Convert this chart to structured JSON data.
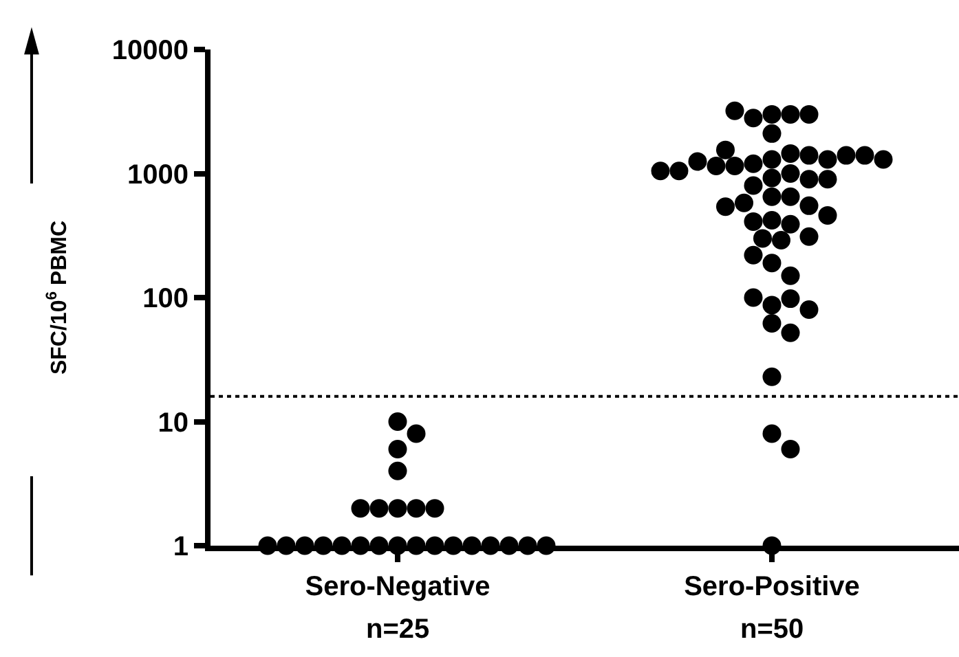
{
  "chart_data": {
    "type": "scatter",
    "ylabel": "SFC/10$^{6}$ PBMC",
    "categories": [
      "Sero-Negative",
      "Sero-Positive"
    ],
    "series": [
      {
        "color": "#000000",
        "x": [
          "Sero-Negative",
          "Sero-Negative",
          "Sero-Negative",
          "Sero-Negative",
          "Sero-Negative",
          "Sero-Negative",
          "Sero-Negative",
          "Sero-Negative",
          "Sero-Negative",
          "Sero-Negative",
          "Sero-Negative",
          "Sero-Negative",
          "Sero-Negative",
          "Sero-Negative",
          "Sero-Negative",
          "Sero-Negative",
          "Sero-Negative",
          "Sero-Negative",
          "Sero-Negative",
          "Sero-Negative",
          "Sero-Negative",
          "Sero-Negative",
          "Sero-Negative",
          "Sero-Negative",
          "Sero-Negative"
        ],
        "values": [
          10,
          8,
          6,
          4,
          2,
          2,
          2,
          2,
          2,
          1,
          1,
          1,
          1,
          1,
          1,
          1,
          1,
          1,
          1,
          1,
          1,
          1,
          1,
          1,
          1
        ]
      },
      {
        "color": "#000000",
        "x": [
          "Sero-Positive",
          "Sero-Positive",
          "Sero-Positive",
          "Sero-Positive",
          "Sero-Positive",
          "Sero-Positive",
          "Sero-Positive",
          "Sero-Positive",
          "Sero-Positive",
          "Sero-Positive",
          "Sero-Positive",
          "Sero-Positive",
          "Sero-Positive",
          "Sero-Positive",
          "Sero-Positive",
          "Sero-Positive",
          "Sero-Positive",
          "Sero-Positive",
          "Sero-Positive",
          "Sero-Positive",
          "Sero-Positive",
          "Sero-Positive",
          "Sero-Positive",
          "Sero-Positive",
          "Sero-Positive",
          "Sero-Positive",
          "Sero-Positive",
          "Sero-Positive",
          "Sero-Positive",
          "Sero-Positive",
          "Sero-Positive",
          "Sero-Positive",
          "Sero-Positive",
          "Sero-Positive",
          "Sero-Positive",
          "Sero-Positive",
          "Sero-Positive",
          "Sero-Positive",
          "Sero-Positive",
          "Sero-Positive",
          "Sero-Positive",
          "Sero-Positive",
          "Sero-Positive",
          "Sero-Positive",
          "Sero-Positive",
          "Sero-Positive",
          "Sero-Positive",
          "Sero-Positive",
          "Sero-Positive",
          "Sero-Positive"
        ],
        "values": [
          3000,
          3000,
          2800,
          3000,
          3200,
          2100,
          1300,
          1000,
          1450,
          1200,
          920,
          1400,
          1150,
          900,
          1300,
          1150,
          1400,
          1250,
          1400,
          1050,
          1300,
          1550,
          1050,
          900,
          800,
          650,
          650,
          580,
          550,
          540,
          420,
          390,
          410,
          460,
          300,
          290,
          310,
          220,
          190,
          150,
          87,
          98,
          100,
          80,
          62,
          52,
          23,
          8,
          6,
          1
        ]
      }
    ],
    "ylim": [
      1,
      10000
    ],
    "yticks": [
      1,
      10,
      100,
      1000,
      10000
    ],
    "log": true,
    "marker": "circle",
    "ref_lines": [
      {
        "axis": "y",
        "value": 16,
        "line_style": "dotted",
        "color": "#000000"
      }
    ],
    "annotations": [
      "n=25",
      "n=50"
    ]
  }
}
